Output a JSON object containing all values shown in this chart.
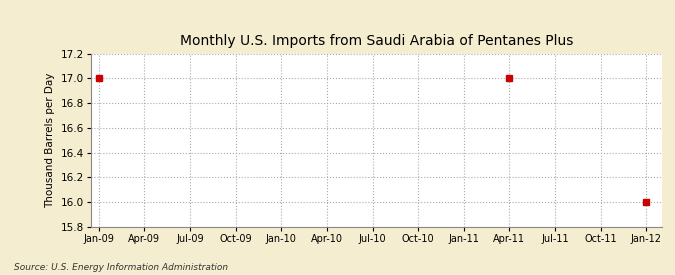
{
  "title": "Monthly U.S. Imports from Saudi Arabia of Pentanes Plus",
  "ylabel": "Thousand Barrels per Day",
  "source": "Source: U.S. Energy Information Administration",
  "background_color": "#F5EDD0",
  "plot_background_color": "#FFFFFF",
  "x_tick_labels": [
    "Jan-09",
    "Apr-09",
    "Jul-09",
    "Oct-09",
    "Jan-10",
    "Apr-10",
    "Jul-10",
    "Oct-10",
    "Jan-11",
    "Apr-11",
    "Jul-11",
    "Oct-11",
    "Jan-12"
  ],
  "x_tick_positions": [
    0,
    3,
    6,
    9,
    12,
    15,
    18,
    21,
    24,
    27,
    30,
    33,
    36
  ],
  "ylim": [
    15.8,
    17.2
  ],
  "yticks": [
    15.8,
    16.0,
    16.2,
    16.4,
    16.6,
    16.8,
    17.0,
    17.2
  ],
  "data_x": [
    0,
    27,
    36
  ],
  "data_y": [
    17.0,
    17.0,
    16.0
  ],
  "marker_color": "#CC0000",
  "marker_size": 5,
  "grid_color": "#AAAAAA",
  "grid_linestyle": ":",
  "grid_linewidth": 0.8
}
